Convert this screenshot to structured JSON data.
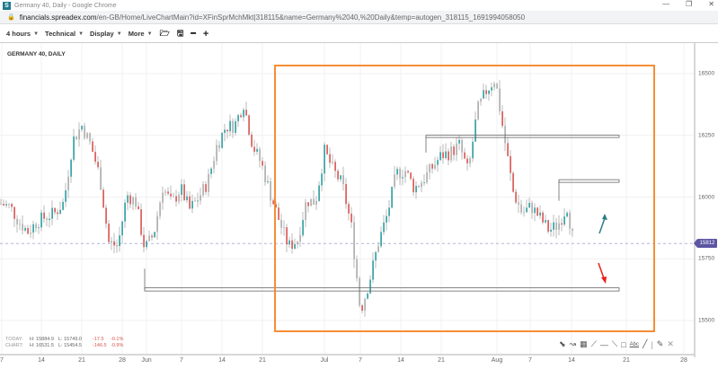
{
  "window": {
    "title": "Germany 40, Daily - Google Chrome",
    "logo_letter": "S",
    "controls": [
      "—",
      "❐",
      "✕"
    ]
  },
  "address": {
    "host": "financials.spreadex.com",
    "path": "/en-GB/Home/LiveChartMain?id=XFinSprMchMkt|318115&name=Germany%2040,%20Daily&temp=autogen_318115_1691994058050"
  },
  "toolbar": {
    "interval": "4 hours",
    "technical": "Technical",
    "display": "Display",
    "more": "More",
    "icons": [
      "folder-open-icon",
      "save-icon",
      "zoom-out-icon",
      "zoom-in-icon"
    ]
  },
  "chart": {
    "title": "GERMANY 40, DAILY",
    "stats": {
      "today": {
        "label": "TODAY:",
        "high": "H: 15884.9",
        "low": "L: 15749.0",
        "change": "-17.5",
        "pct": "-0.1%"
      },
      "chart": {
        "label": "CHART:",
        "high": "H: 16531.5",
        "low": "L: 15454.5",
        "change": "-146.5",
        "pct": "-0.9%"
      }
    },
    "current_price": "15812",
    "drawing_tools": [
      "pointer-icon",
      "curve-icon",
      "fib-grid-icon",
      "fan-icon",
      "horizontal-line-icon",
      "trend-line-icon",
      "rectangle-icon",
      "text-icon",
      "line-icon",
      "separator",
      "pencil-icon",
      "close-icon"
    ],
    "colors": {
      "up": "#2a9d9f",
      "down": "#d9534f",
      "box": "#f5821f",
      "current": "#5b55a3",
      "arrow_up": "#2e7d85",
      "arrow_down": "#e8201a"
    }
  },
  "chart_data": {
    "type": "candlestick",
    "title": "GERMANY 40, DAILY",
    "ylim": [
      15400,
      16600
    ],
    "y_ticks": [
      "16500",
      "16250",
      "16000",
      "15750",
      "15500"
    ],
    "x_ticks": [
      "7",
      "14",
      "21",
      "28",
      "Jun",
      "7",
      "14",
      "21",
      "Jul",
      "7",
      "14",
      "21",
      "Aug",
      "7",
      "14",
      "21",
      "28"
    ],
    "approx_closes": [
      15973,
      15962,
      15900,
      15860,
      15900,
      15920,
      15935,
      15980,
      16230,
      16289,
      16210,
      16082,
      15816,
      15800,
      16010,
      15980,
      15790,
      15850,
      16040,
      15973,
      16035,
      15950,
      15998,
      16060,
      16205,
      16285,
      16290,
      16380,
      16210,
      16133,
      16010,
      15900,
      15800,
      15827,
      15987,
      15980,
      16185,
      16107,
      16050,
      15878,
      15536,
      15660,
      15816,
      15930,
      16096,
      16107,
      16035,
      16071,
      16120,
      16169,
      16180,
      16210,
      16100,
      16350,
      16430,
      16480,
      16242,
      16020,
      15935,
      15962,
      15915,
      15864,
      15889,
      15962,
      15760
    ],
    "levels": {
      "support": 15625,
      "resistance_upper": 16245,
      "resistance_mid": 16065
    },
    "current": 15812
  }
}
